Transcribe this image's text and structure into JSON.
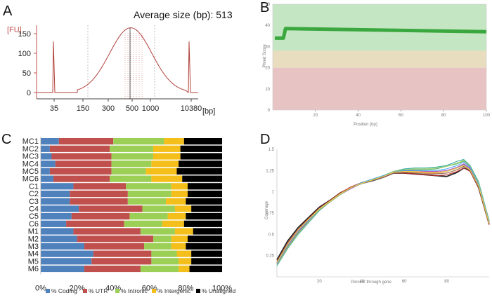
{
  "chart_data": [
    {
      "panel": "A",
      "type": "line",
      "title": "Average size (bp): 513",
      "ylabel": "[FU]",
      "xlabel": "[bp]",
      "x_ticks": [
        "35",
        "150",
        "300",
        "500",
        "1000",
        "10380"
      ],
      "y_ticks": [
        0,
        50,
        100,
        150
      ],
      "ylim": [
        -5,
        175
      ],
      "marker_peaks_bp": [
        35,
        10380
      ],
      "marker_peak_fu": [
        130,
        130
      ],
      "main_peak": {
        "bp": 500,
        "fu": 165
      },
      "line_color": "#b2403a"
    },
    {
      "panel": "B",
      "type": "line",
      "xlabel": "Position (bp)",
      "ylabel": "Phred Score",
      "xlim": [
        0,
        100
      ],
      "ylim": [
        0,
        50
      ],
      "x_ticks": [
        20,
        40,
        60,
        80,
        100
      ],
      "y_ticks": [
        0,
        10,
        20,
        30,
        40,
        50
      ],
      "zones": [
        {
          "from": 0,
          "to": 20,
          "color": "#e8c3c3"
        },
        {
          "from": 20,
          "to": 28,
          "color": "#e9ddc0"
        },
        {
          "from": 28,
          "to": 50,
          "color": "#c5e6c3"
        }
      ],
      "series": [
        {
          "x": [
            1,
            4,
            5,
            6,
            100
          ],
          "y": [
            34,
            34,
            34,
            38.5,
            37
          ],
          "color": "#3aa83f"
        }
      ]
    },
    {
      "panel": "C",
      "type": "bar",
      "orientation": "horizontal",
      "stacked": true,
      "x_ticks": [
        "0%",
        "20%",
        "40%",
        "60%",
        "80%",
        "100%"
      ],
      "categories": [
        "MC1",
        "MC2",
        "MC3",
        "MC4",
        "MC5",
        "MC6",
        "C1",
        "C2",
        "C3",
        "C4",
        "C5",
        "C6",
        "M1",
        "M2",
        "M3",
        "M4",
        "M5",
        "M6"
      ],
      "series": [
        {
          "name": "% Coding",
          "color": "#4f81bd",
          "values": [
            10,
            5,
            6,
            8,
            5,
            7,
            18,
            16,
            16,
            21,
            17,
            14,
            18,
            20,
            24,
            29,
            28,
            24
          ]
        },
        {
          "name": "% UTR",
          "color": "#c0504d",
          "values": [
            30,
            33,
            33,
            31,
            34,
            31,
            29,
            32,
            32,
            35,
            32,
            32,
            37,
            42,
            33,
            32,
            33,
            31
          ]
        },
        {
          "name": "% Intronic",
          "color": "#9bcf55",
          "values": [
            28,
            24,
            23,
            22,
            19,
            23,
            25,
            24,
            21,
            18,
            21,
            21,
            19,
            10,
            15,
            14,
            15,
            21
          ]
        },
        {
          "name": "% Intergenic",
          "color": "#f5bf1b",
          "values": [
            11,
            15,
            15,
            15,
            17,
            17,
            9,
            9,
            11,
            9,
            10,
            12,
            10,
            9,
            8,
            8,
            7,
            6
          ]
        },
        {
          "name": "% Unaligned",
          "color": "#000000",
          "values": [
            21,
            23,
            23,
            24,
            25,
            22,
            19,
            19,
            20,
            17,
            20,
            21,
            16,
            19,
            20,
            17,
            17,
            18
          ]
        }
      ]
    },
    {
      "panel": "D",
      "type": "line",
      "xlabel": "Percent through gene",
      "ylabel": "Coverage",
      "xlim": [
        0,
        100
      ],
      "ylim": [
        0,
        1.5
      ],
      "x_ticks": [
        20,
        40,
        60,
        80
      ],
      "y_ticks": [
        "0.25",
        "0.5",
        "0.75",
        "1",
        "1.25",
        "1.5"
      ],
      "x": [
        0,
        5,
        10,
        15,
        20,
        25,
        30,
        35,
        40,
        45,
        50,
        55,
        60,
        65,
        70,
        75,
        80,
        85,
        88,
        91,
        95,
        100
      ],
      "series": [
        {
          "color": "#111111",
          "values": [
            0.2,
            0.42,
            0.58,
            0.7,
            0.82,
            0.9,
            0.99,
            1.05,
            1.1,
            1.13,
            1.17,
            1.22,
            1.22,
            1.21,
            1.2,
            1.19,
            1.18,
            1.23,
            1.28,
            1.25,
            1.05,
            0.62
          ]
        },
        {
          "color": "#4caf50",
          "values": [
            0.15,
            0.35,
            0.52,
            0.66,
            0.79,
            0.88,
            0.97,
            1.05,
            1.1,
            1.14,
            1.18,
            1.23,
            1.26,
            1.26,
            1.26,
            1.27,
            1.3,
            1.33,
            1.36,
            1.3,
            1.1,
            0.66
          ]
        },
        {
          "color": "#26a69a",
          "values": [
            0.13,
            0.33,
            0.5,
            0.64,
            0.78,
            0.88,
            0.97,
            1.04,
            1.1,
            1.15,
            1.19,
            1.24,
            1.27,
            1.28,
            1.28,
            1.29,
            1.31,
            1.36,
            1.38,
            1.31,
            1.12,
            0.66
          ]
        },
        {
          "color": "#ef6c00",
          "values": [
            0.17,
            0.38,
            0.55,
            0.68,
            0.8,
            0.89,
            0.98,
            1.05,
            1.11,
            1.14,
            1.18,
            1.23,
            1.24,
            1.23,
            1.22,
            1.22,
            1.22,
            1.26,
            1.3,
            1.26,
            1.07,
            0.63
          ]
        },
        {
          "color": "#c62828",
          "values": [
            0.18,
            0.4,
            0.56,
            0.69,
            0.81,
            0.9,
            0.99,
            1.06,
            1.11,
            1.14,
            1.17,
            1.22,
            1.22,
            1.21,
            1.2,
            1.19,
            1.2,
            1.24,
            1.28,
            1.24,
            1.05,
            0.61
          ]
        },
        {
          "color": "#5c6bc0",
          "values": [
            0.16,
            0.37,
            0.54,
            0.67,
            0.8,
            0.89,
            0.98,
            1.05,
            1.1,
            1.14,
            1.18,
            1.24,
            1.25,
            1.24,
            1.23,
            1.23,
            1.24,
            1.28,
            1.32,
            1.27,
            1.08,
            0.64
          ]
        },
        {
          "color": "#8d6e63",
          "values": [
            0.17,
            0.39,
            0.55,
            0.68,
            0.8,
            0.89,
            0.98,
            1.05,
            1.1,
            1.13,
            1.17,
            1.22,
            1.23,
            1.22,
            1.21,
            1.21,
            1.22,
            1.26,
            1.3,
            1.25,
            1.06,
            0.62
          ]
        },
        {
          "color": "#ab47bc",
          "values": [
            0.15,
            0.36,
            0.53,
            0.66,
            0.79,
            0.88,
            0.97,
            1.04,
            1.1,
            1.14,
            1.18,
            1.23,
            1.25,
            1.25,
            1.24,
            1.24,
            1.25,
            1.29,
            1.33,
            1.28,
            1.09,
            0.65
          ]
        },
        {
          "color": "#9ccc65",
          "values": [
            0.14,
            0.34,
            0.51,
            0.65,
            0.79,
            0.88,
            0.97,
            1.05,
            1.1,
            1.14,
            1.19,
            1.24,
            1.26,
            1.27,
            1.27,
            1.28,
            1.3,
            1.34,
            1.37,
            1.3,
            1.11,
            0.66
          ]
        },
        {
          "color": "#42a5f5",
          "values": [
            0.16,
            0.37,
            0.54,
            0.67,
            0.8,
            0.89,
            0.98,
            1.05,
            1.11,
            1.15,
            1.19,
            1.23,
            1.25,
            1.25,
            1.25,
            1.25,
            1.27,
            1.31,
            1.35,
            1.29,
            1.09,
            0.65
          ]
        },
        {
          "color": "#fdd835",
          "values": [
            0.17,
            0.38,
            0.55,
            0.68,
            0.8,
            0.89,
            0.98,
            1.05,
            1.1,
            1.14,
            1.18,
            1.23,
            1.24,
            1.24,
            1.23,
            1.23,
            1.24,
            1.28,
            1.31,
            1.26,
            1.07,
            0.63
          ]
        }
      ]
    }
  ],
  "panel_labels": {
    "a": "A",
    "b": "B",
    "c": "C",
    "d": "D"
  }
}
